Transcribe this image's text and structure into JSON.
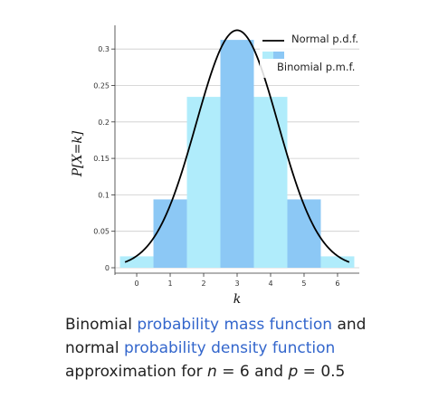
{
  "chart_data": {
    "type": "bar",
    "xlabel": "k",
    "ylabel": "P[X=k]",
    "x": [
      0,
      1,
      2,
      3,
      4,
      5,
      6
    ],
    "ylim": [
      0,
      0.33
    ],
    "yticks": [
      0,
      0.05,
      0.1,
      0.15,
      0.2,
      0.25,
      0.3
    ],
    "ytick_labels": [
      "0",
      "0.05",
      "0.1",
      "0.15",
      "0.2",
      "0.25",
      "0.3"
    ],
    "xtick_labels": [
      "0",
      "1",
      "2",
      "3",
      "4",
      "5",
      "6"
    ],
    "grid": true,
    "legend_position": "top-right",
    "series": [
      {
        "name": "Binomial p.m.f.",
        "kind": "bar",
        "values": [
          0.015625,
          0.09375,
          0.234375,
          0.3125,
          0.234375,
          0.09375,
          0.015625
        ],
        "colors": [
          "#b0ecfb",
          "#8cc8f5"
        ]
      },
      {
        "name": "Normal p.d.f.",
        "kind": "line",
        "mean": 3,
        "sd": 1.2247,
        "color": "#000000"
      }
    ]
  },
  "caption": {
    "t1": "Binomial ",
    "link1": "probability mass function",
    "t2": " and normal ",
    "link2": "probability density function",
    "t3": " approximation for ",
    "var_n": "n",
    "t4": " = 6 and ",
    "var_p": "p",
    "t5": " = 0.5"
  },
  "colors": {
    "light_bar": "#b0ecfb",
    "dark_bar": "#8cc8f5",
    "link": "#3366cc"
  }
}
